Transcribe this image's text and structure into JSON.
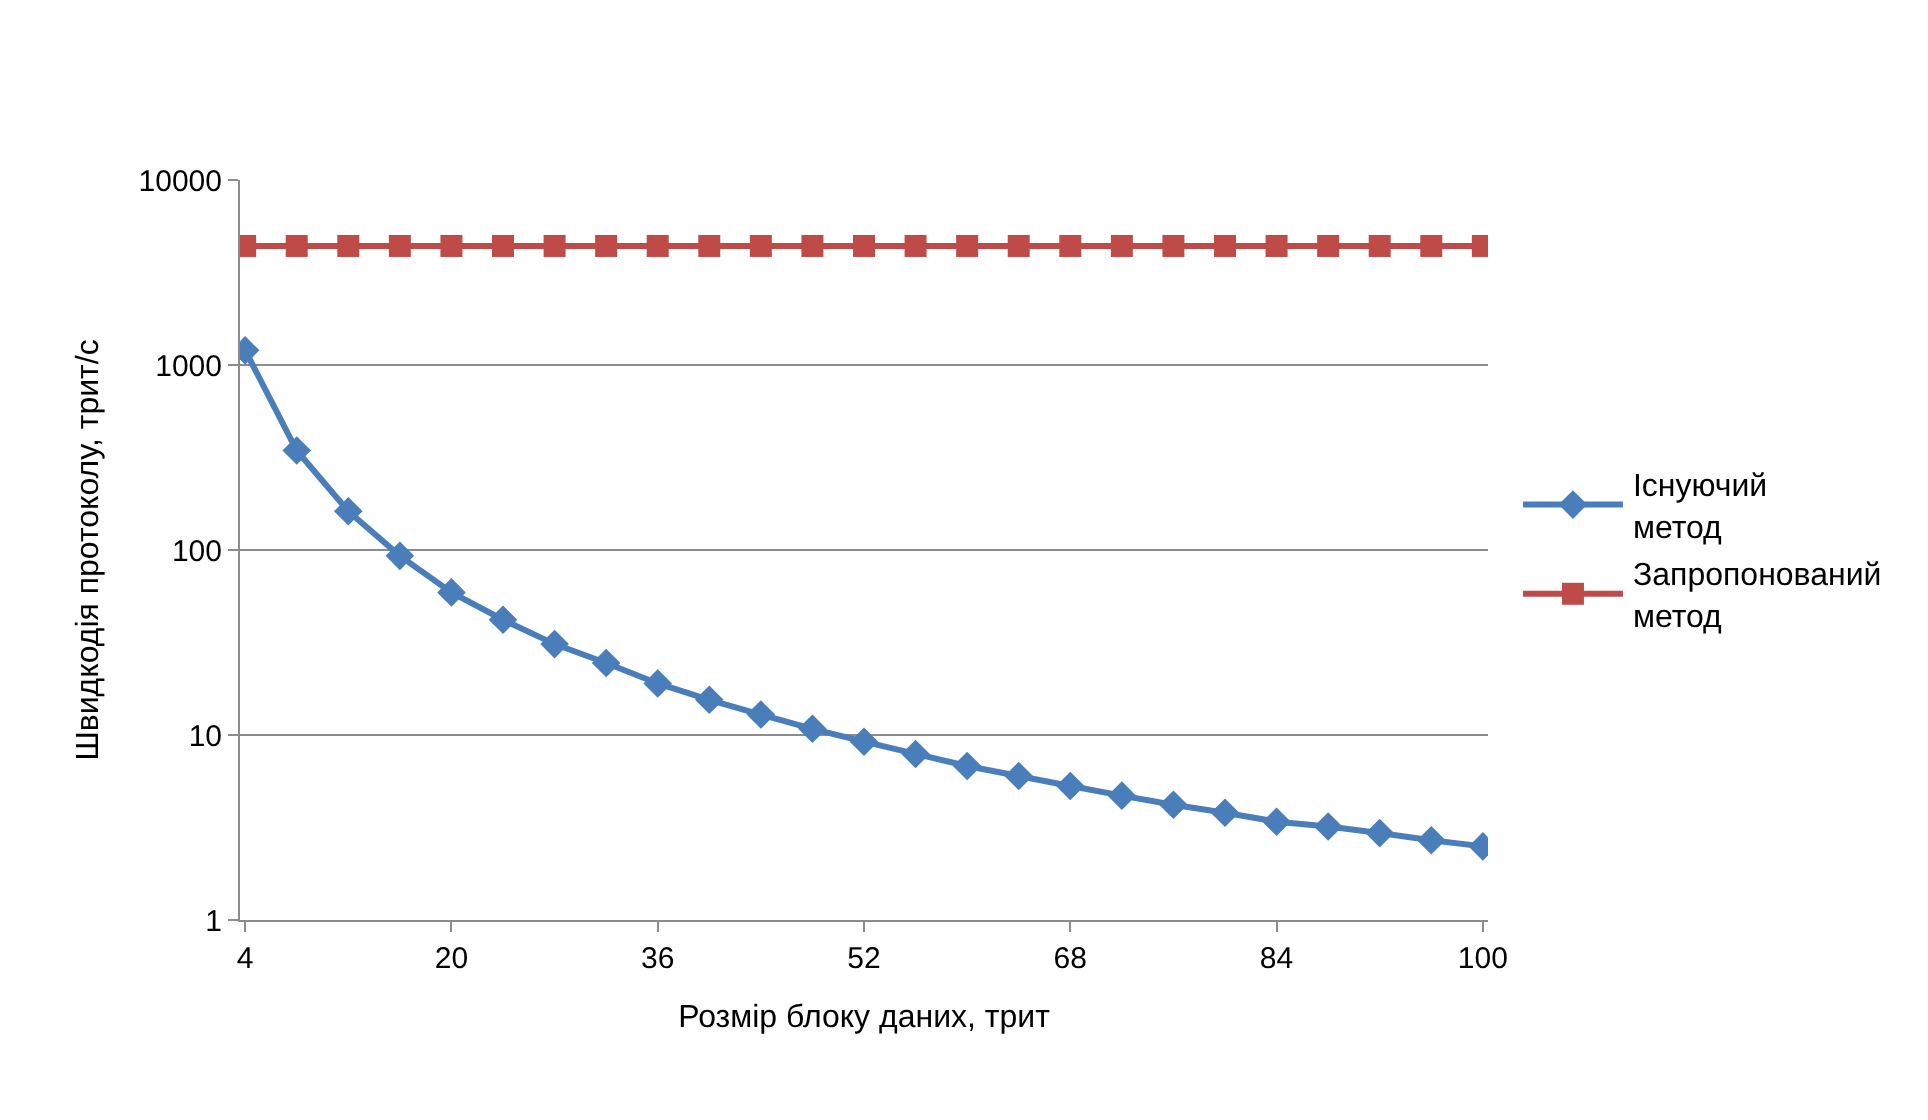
{
  "chart_data": {
    "type": "line",
    "xlabel": "Розмір блоку даних, трит",
    "ylabel": "Швидкодія протоколу, трит/с",
    "categories": [
      "4",
      null,
      null,
      null,
      "20",
      null,
      null,
      null,
      "36",
      null,
      null,
      null,
      "52",
      null,
      null,
      null,
      "68",
      null,
      null,
      null,
      "84",
      null,
      null,
      null,
      "100"
    ],
    "series": [
      {
        "name": "Існуючий метод",
        "color": "#4a7ebb",
        "marker": "diamond",
        "values": [
          1200,
          345,
          162,
          93,
          59,
          42,
          31,
          24.5,
          19,
          15.5,
          12.9,
          10.8,
          9.2,
          7.9,
          6.8,
          6.0,
          5.3,
          4.7,
          4.2,
          3.8,
          3.4,
          3.2,
          2.95,
          2.7,
          2.5
        ]
      },
      {
        "name": "Запропонований метод",
        "color": "#be4b48",
        "marker": "square",
        "values": [
          4400,
          4400,
          4400,
          4400,
          4400,
          4400,
          4400,
          4400,
          4400,
          4400,
          4400,
          4400,
          4400,
          4400,
          4400,
          4400,
          4400,
          4400,
          4400,
          4400,
          4400,
          4400,
          4400,
          4400,
          4400
        ]
      }
    ],
    "log": "y",
    "ylim": [
      1,
      10000
    ],
    "yticks": [
      1,
      10,
      100,
      1000,
      10000
    ],
    "grid": "y",
    "legend": "right"
  }
}
